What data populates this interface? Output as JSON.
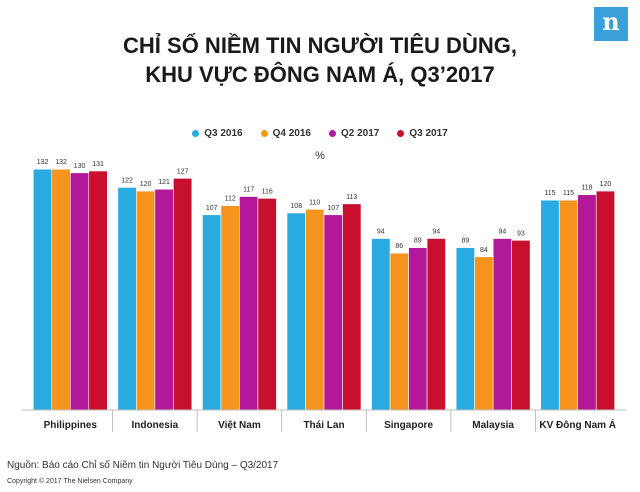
{
  "logo": {
    "letter": "n"
  },
  "chart_data": {
    "type": "bar",
    "title_line1": "CHỈ SỐ NIỀM TIN NGƯỜI TIÊU DÙNG,",
    "title_line2": "KHU VỰC ĐÔNG NAM Á, Q3’2017",
    "unit": "%",
    "categories": [
      "Philippines",
      "Indonesia",
      "Việt Nam",
      "Thái Lan",
      "Singapore",
      "Malaysia",
      "KV Đông Nam Á"
    ],
    "series": [
      {
        "name": "Q3 2016",
        "color": "#29abe2",
        "values": [
          132,
          122,
          107,
          108,
          94,
          89,
          115
        ]
      },
      {
        "name": "Q4 2016",
        "color": "#f7941d",
        "values": [
          132,
          120,
          112,
          110,
          86,
          84,
          115
        ]
      },
      {
        "name": "Q2 2017",
        "color": "#b3179a",
        "values": [
          130,
          121,
          117,
          107,
          89,
          94,
          118
        ]
      },
      {
        "name": "Q3 2017",
        "color": "#c8102e",
        "values": [
          131,
          127,
          116,
          113,
          94,
          93,
          120
        ]
      }
    ],
    "ylim": [
      0,
      135
    ],
    "legend_position": "top-center",
    "grid": false
  },
  "footer": {
    "source": "Nguồn: Báo cáo Chỉ số Niềm tin Người Tiêu Dùng – Q3/2017",
    "copyright": "Copyright © 2017 The Nielsen Company"
  }
}
